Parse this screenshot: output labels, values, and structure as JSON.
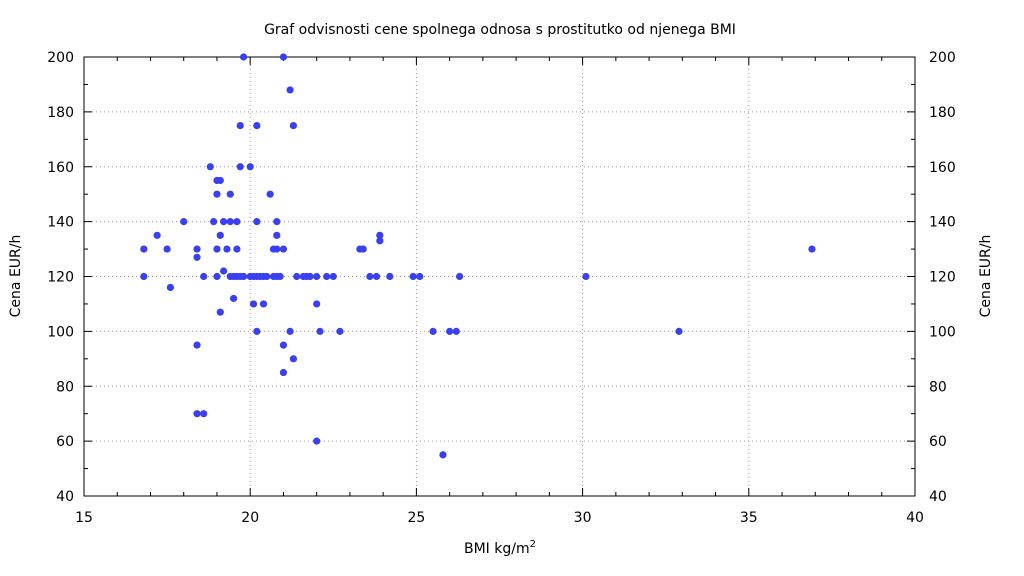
{
  "chart_data": {
    "type": "scatter",
    "title": "Graf odvisnosti cene spolnega odnosa s prostitutko od njenega BMI",
    "xlabel": "BMI kg/m",
    "xlabel_sup": "2",
    "ylabel": "Cena EUR/h",
    "y2label": "Cena EUR/h",
    "xlim": [
      15,
      40
    ],
    "ylim": [
      40,
      200
    ],
    "xticks": [
      "15",
      "20",
      "25",
      "30",
      "35",
      "40"
    ],
    "yticks": [
      "40",
      "60",
      "80",
      "100",
      "120",
      "140",
      "160",
      "180",
      "200"
    ],
    "grid": true,
    "point_color": "#3a3ff0",
    "points": [
      [
        16.8,
        130
      ],
      [
        16.8,
        120
      ],
      [
        17.2,
        135
      ],
      [
        17.5,
        130
      ],
      [
        17.6,
        116
      ],
      [
        18.0,
        140
      ],
      [
        18.4,
        130
      ],
      [
        18.4,
        127
      ],
      [
        18.4,
        95
      ],
      [
        18.4,
        70
      ],
      [
        18.6,
        70
      ],
      [
        18.6,
        120
      ],
      [
        18.8,
        160
      ],
      [
        18.9,
        140
      ],
      [
        19.0,
        155
      ],
      [
        19.0,
        150
      ],
      [
        19.0,
        130
      ],
      [
        19.0,
        120
      ],
      [
        19.1,
        155
      ],
      [
        19.1,
        135
      ],
      [
        19.1,
        107
      ],
      [
        19.2,
        140
      ],
      [
        19.2,
        122
      ],
      [
        19.3,
        130
      ],
      [
        19.4,
        150
      ],
      [
        19.4,
        140
      ],
      [
        19.4,
        120
      ],
      [
        19.5,
        120
      ],
      [
        19.5,
        112
      ],
      [
        19.6,
        140
      ],
      [
        19.6,
        130
      ],
      [
        19.6,
        120
      ],
      [
        19.7,
        175
      ],
      [
        19.7,
        160
      ],
      [
        19.7,
        120
      ],
      [
        19.8,
        120
      ],
      [
        19.8,
        200
      ],
      [
        20.0,
        160
      ],
      [
        20.0,
        120
      ],
      [
        20.1,
        120
      ],
      [
        20.1,
        110
      ],
      [
        20.2,
        175
      ],
      [
        20.2,
        140
      ],
      [
        20.2,
        120
      ],
      [
        20.2,
        100
      ],
      [
        20.3,
        120
      ],
      [
        20.4,
        120
      ],
      [
        20.4,
        110
      ],
      [
        20.5,
        120
      ],
      [
        20.6,
        150
      ],
      [
        20.7,
        130
      ],
      [
        20.7,
        120
      ],
      [
        20.8,
        140
      ],
      [
        20.8,
        135
      ],
      [
        20.8,
        130
      ],
      [
        20.8,
        120
      ],
      [
        20.9,
        120
      ],
      [
        21.0,
        200
      ],
      [
        21.0,
        130
      ],
      [
        21.0,
        95
      ],
      [
        21.0,
        85
      ],
      [
        21.2,
        188
      ],
      [
        21.2,
        100
      ],
      [
        21.3,
        175
      ],
      [
        21.3,
        90
      ],
      [
        21.4,
        120
      ],
      [
        21.6,
        120
      ],
      [
        21.7,
        120
      ],
      [
        21.8,
        120
      ],
      [
        22.0,
        120
      ],
      [
        22.0,
        110
      ],
      [
        22.0,
        60
      ],
      [
        22.1,
        100
      ],
      [
        22.3,
        120
      ],
      [
        22.5,
        120
      ],
      [
        22.7,
        100
      ],
      [
        23.3,
        130
      ],
      [
        23.4,
        130
      ],
      [
        23.6,
        120
      ],
      [
        23.8,
        120
      ],
      [
        23.9,
        135
      ],
      [
        23.9,
        133
      ],
      [
        24.2,
        120
      ],
      [
        24.9,
        120
      ],
      [
        25.1,
        120
      ],
      [
        25.5,
        100
      ],
      [
        25.8,
        55
      ],
      [
        26.0,
        100
      ],
      [
        26.2,
        100
      ],
      [
        26.3,
        120
      ],
      [
        30.1,
        120
      ],
      [
        32.9,
        100
      ],
      [
        36.9,
        130
      ]
    ]
  }
}
